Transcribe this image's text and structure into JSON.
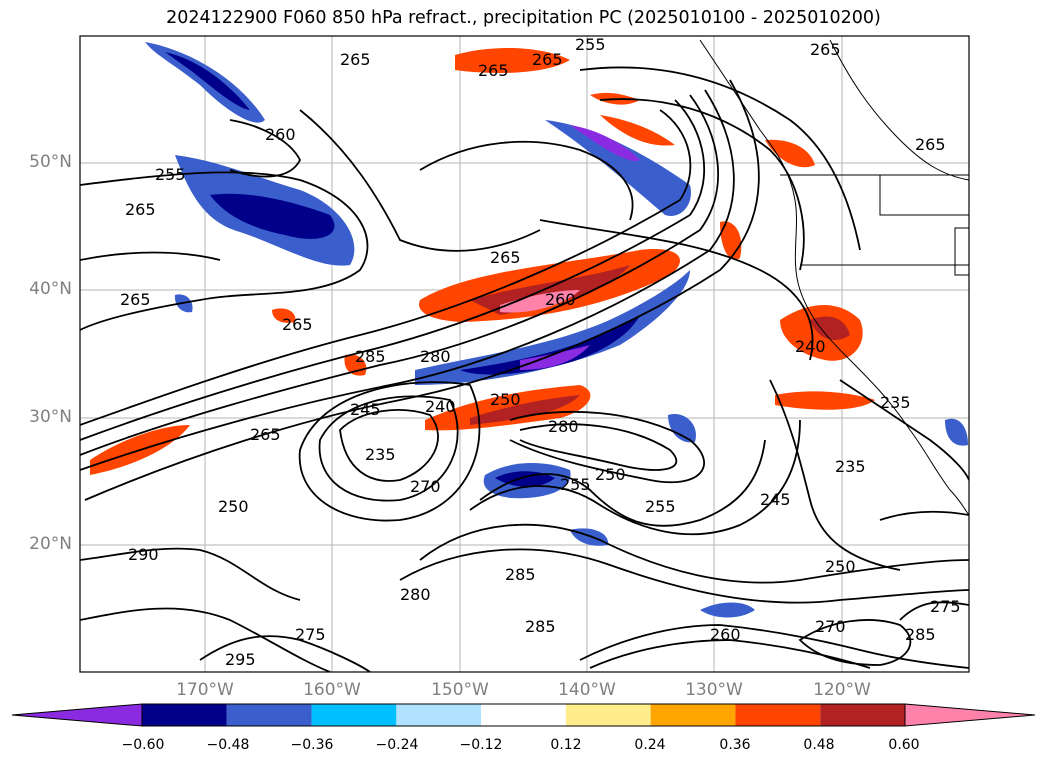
{
  "title": "2024122900 F060 850 hPa refract., precipitation PC (2025010100 - 2025010200)",
  "lat_labels": [
    "50°N",
    "40°N",
    "30°N",
    "20°N"
  ],
  "lon_labels": [
    "170°W",
    "160°W",
    "150°W",
    "140°W",
    "130°W",
    "120°W"
  ],
  "contour_labels": [
    "265",
    "265",
    "265",
    "255",
    "260",
    "255",
    "265",
    "265",
    "265",
    "265",
    "260",
    "280",
    "285",
    "265",
    "250",
    "245",
    "240",
    "235",
    "265",
    "250",
    "280",
    "255",
    "250",
    "270",
    "255",
    "285",
    "280",
    "275",
    "290",
    "285",
    "295",
    "260",
    "270",
    "245",
    "250",
    "240",
    "235",
    "235",
    "265",
    "275",
    "285"
  ],
  "colorbar": {
    "ticks": [
      "−0.60",
      "−0.48",
      "−0.36",
      "−0.24",
      "−0.12",
      "0.12",
      "0.24",
      "0.36",
      "0.48",
      "0.60"
    ],
    "colors": [
      "#8a2be2",
      "#00008b",
      "#3a5fcd",
      "#00bfff",
      "#b0e2ff",
      "#ffffff",
      "#ffec8b",
      "#ffa500",
      "#ff4500",
      "#b22222",
      "#ff82ab"
    ]
  }
}
